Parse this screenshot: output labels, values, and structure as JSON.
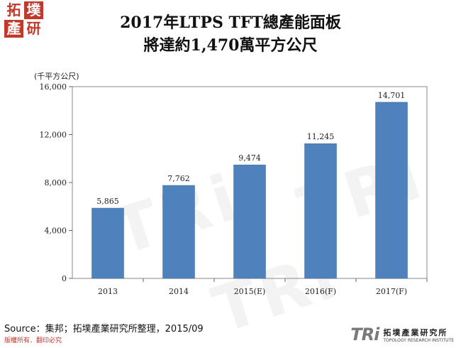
{
  "logo": {
    "chars": [
      "拓",
      "墣",
      "產",
      "研"
    ]
  },
  "title_line1": "2017年LTPS TFT總產能面板",
  "title_line2": "將達約1,470萬平方公尺",
  "chart_data": {
    "type": "bar",
    "title": "2017年LTPS TFT總產能面板 將達約1,470萬平方公尺",
    "ylabel": "(千平方公尺)",
    "categories": [
      "2013",
      "2014",
      "2015(E)",
      "2016(F)",
      "2017(F)"
    ],
    "values": [
      5865,
      7762,
      9474,
      11245,
      14701
    ],
    "value_labels": [
      "5,865",
      "7,762",
      "9,474",
      "11,245",
      "14,701"
    ],
    "ylim": [
      0,
      16000
    ],
    "yticks": [
      0,
      4000,
      8000,
      12000,
      16000
    ],
    "ytick_labels": [
      "0",
      "4,000",
      "8,000",
      "12,000",
      "16,000"
    ],
    "bar_color": "#4f81bd",
    "grid": false,
    "legend": "none"
  },
  "source": "Source：集邦；拓墣產業研究所整理，2015/09",
  "footer_note": "版權所有．翻印必究",
  "brand": {
    "tri": "TRi",
    "cn": "拓墣產業研究所",
    "en": "TOPOLOGY RESEARCH INSTITUTE"
  },
  "watermark": "TRi"
}
